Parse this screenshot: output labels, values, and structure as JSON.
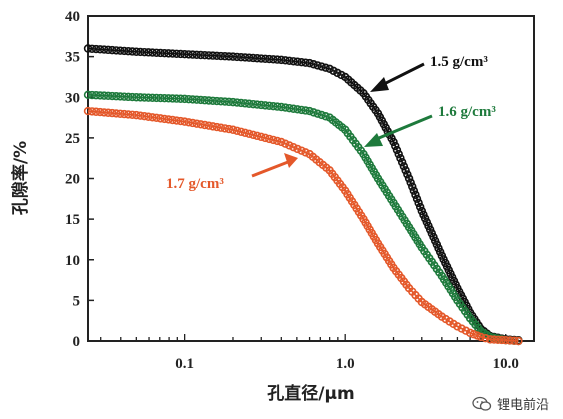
{
  "chart_data": {
    "type": "scatter",
    "xlabel": "孔直径/μm",
    "ylabel": "孔隙率/%",
    "xscale": "log",
    "xlim": [
      0.025,
      15
    ],
    "ylim": [
      0,
      40
    ],
    "x_tick_labels": [
      "0.1",
      "1.0",
      "10.0"
    ],
    "x_ticks": [
      0.1,
      1.0,
      10.0
    ],
    "y_ticks": [
      0,
      5,
      10,
      15,
      20,
      25,
      30,
      35,
      40
    ],
    "y_tick_labels": [
      "0",
      "5",
      "10",
      "15",
      "20",
      "25",
      "30",
      "35",
      "40"
    ],
    "grid": false,
    "x": [
      0.025,
      0.05,
      0.1,
      0.2,
      0.4,
      0.6,
      0.8,
      1.0,
      1.3,
      1.6,
      2.0,
      2.5,
      3.0,
      4.0,
      5.0,
      6.0,
      7.0,
      8.0,
      10.0,
      12.0
    ],
    "series": [
      {
        "name": "1.5 g/cm³",
        "color": "#111111",
        "values": [
          36.0,
          35.6,
          35.3,
          35.0,
          34.6,
          34.2,
          33.5,
          32.5,
          30.5,
          28.0,
          24.5,
          20.0,
          16.0,
          10.5,
          6.5,
          3.5,
          1.5,
          0.6,
          0.2,
          0.1
        ]
      },
      {
        "name": "1.6 g/cm³",
        "color": "#1e7a3c",
        "values": [
          30.3,
          30.0,
          29.8,
          29.4,
          28.8,
          28.3,
          27.5,
          26.0,
          23.0,
          20.0,
          17.0,
          14.0,
          11.5,
          8.0,
          5.0,
          2.8,
          1.2,
          0.5,
          0.1,
          0.0
        ]
      },
      {
        "name": "1.7 g/cm³",
        "color": "#e4582a",
        "values": [
          28.3,
          27.8,
          27.0,
          26.0,
          24.5,
          23.0,
          21.0,
          18.5,
          15.0,
          12.0,
          9.0,
          6.5,
          4.8,
          3.0,
          1.8,
          1.0,
          0.5,
          0.2,
          0.1,
          0.0
        ]
      }
    ]
  },
  "watermark": {
    "text": "锂电前沿",
    "icon": "wechat-icon"
  }
}
